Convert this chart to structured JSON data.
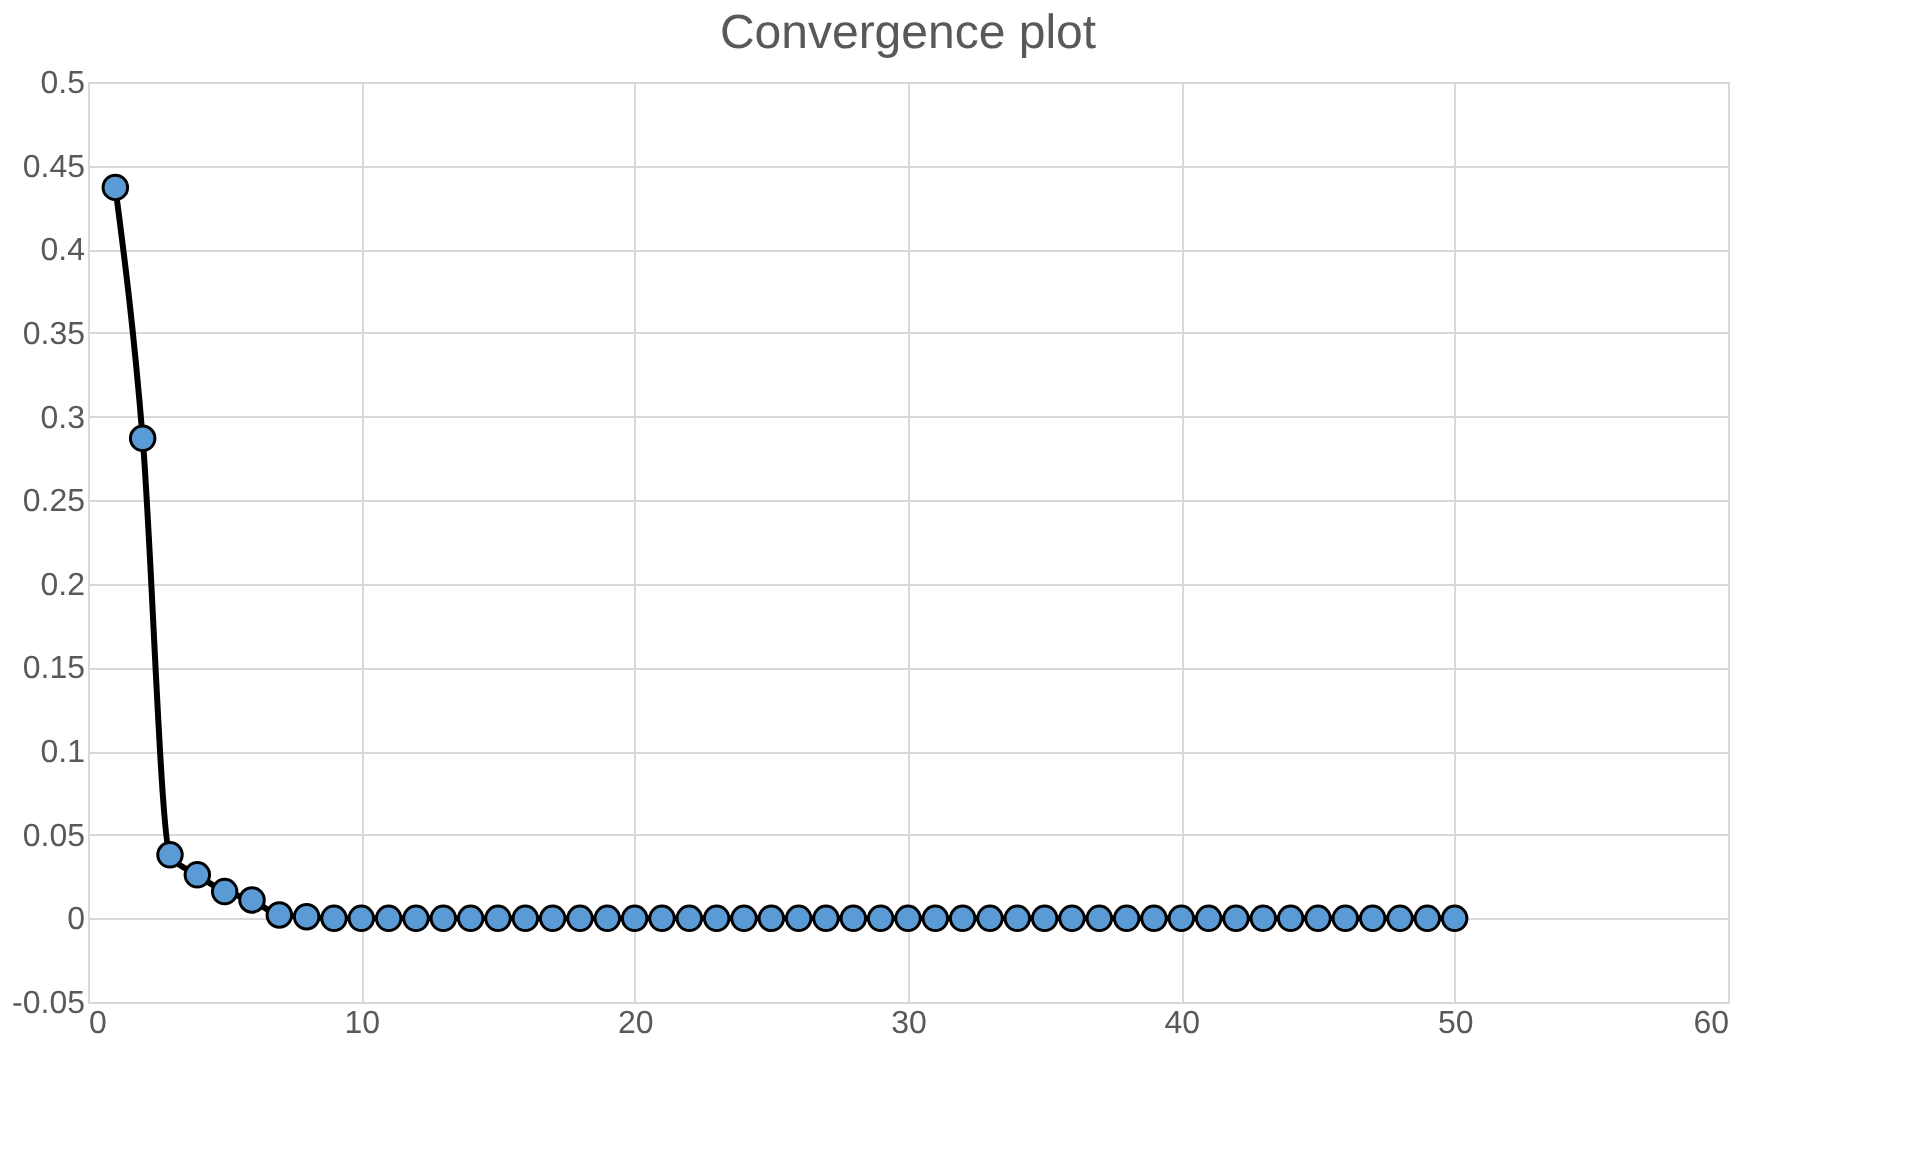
{
  "chart_data": {
    "type": "line",
    "title": "Convergence plot",
    "x": [
      1,
      2,
      3,
      4,
      5,
      6,
      7,
      8,
      9,
      10,
      11,
      12,
      13,
      14,
      15,
      16,
      17,
      18,
      19,
      20,
      21,
      22,
      23,
      24,
      25,
      26,
      27,
      28,
      29,
      30,
      31,
      32,
      33,
      34,
      35,
      36,
      37,
      38,
      39,
      40,
      41,
      42,
      43,
      44,
      45,
      46,
      47,
      48,
      49,
      50
    ],
    "series": [
      {
        "color": "#5b9bd5",
        "values": [
          0.437,
          0.287,
          0.038,
          0.026,
          0.016,
          0.011,
          0.002,
          0.001,
          0,
          0,
          0,
          0,
          0,
          0,
          0,
          0,
          0,
          0,
          0,
          0,
          0,
          0,
          0,
          0,
          0,
          0,
          0,
          0,
          0,
          0,
          0,
          0,
          0,
          0,
          0,
          0,
          0,
          0,
          0,
          0,
          0,
          0,
          0,
          0,
          0,
          0,
          0,
          0,
          0,
          0
        ]
      }
    ],
    "marker": "circle",
    "line_style": "solid",
    "xlim": [
      0,
      60
    ],
    "xticks": [
      0,
      10,
      20,
      30,
      40,
      50,
      60
    ],
    "ylim": [
      -0.05,
      0.5
    ],
    "yticks": [
      -0.05,
      0,
      0.05,
      0.1,
      0.15,
      0.2,
      0.25,
      0.3,
      0.35,
      0.4,
      0.45,
      0.5
    ],
    "grid": true
  }
}
